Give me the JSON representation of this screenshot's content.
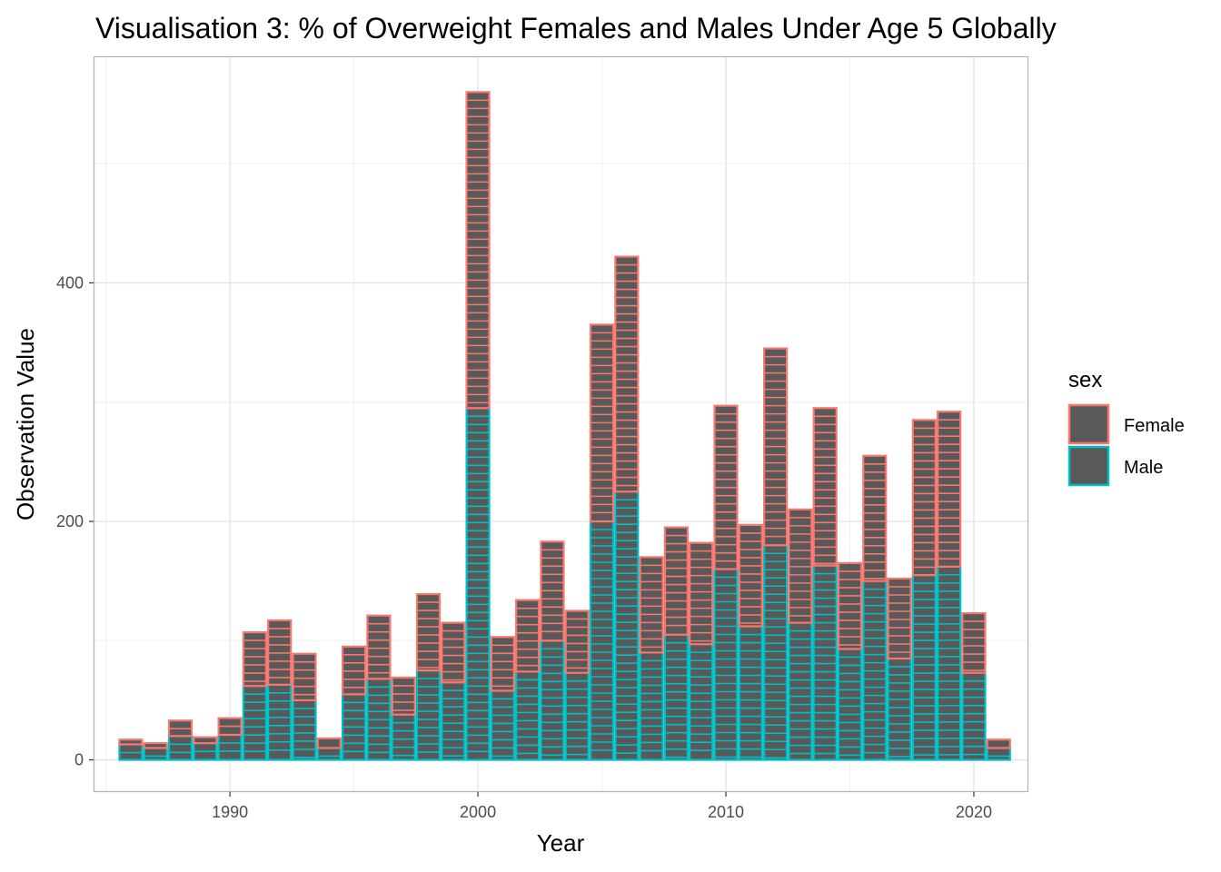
{
  "chart_data": {
    "type": "bar",
    "title": "Visualisation 3: % of Overweight Females and Males Under Age 5 Globally",
    "xlabel": "Year",
    "ylabel": "Observation Value",
    "x": [
      1986,
      1987,
      1988,
      1989,
      1990,
      1991,
      1992,
      1993,
      1994,
      1995,
      1996,
      1997,
      1998,
      1999,
      2000,
      2001,
      2002,
      2003,
      2004,
      2005,
      2006,
      2007,
      2008,
      2009,
      2010,
      2011,
      2012,
      2013,
      2014,
      2015,
      2016,
      2017,
      2018,
      2019,
      2020,
      2021
    ],
    "series": [
      {
        "name": "Male",
        "color": "#00BFC4",
        "values": [
          13,
          10,
          20,
          14,
          21,
          62,
          63,
          50,
          10,
          55,
          68,
          38,
          75,
          65,
          295,
          58,
          74,
          100,
          73,
          200,
          225,
          90,
          105,
          97,
          160,
          112,
          180,
          115,
          163,
          93,
          150,
          85,
          155,
          162,
          73,
          10
        ]
      },
      {
        "name": "Female",
        "color": "#F8766D",
        "values": [
          4,
          4,
          13,
          5,
          14,
          45,
          54,
          39,
          8,
          40,
          53,
          31,
          64,
          50,
          265,
          45,
          60,
          83,
          52,
          165,
          197,
          80,
          90,
          85,
          137,
          85,
          165,
          95,
          132,
          72,
          105,
          67,
          130,
          130,
          50,
          7
        ]
      }
    ],
    "stacked": true,
    "xlim": [
      1984.5,
      2022.2
    ],
    "ylim": [
      -27,
      590
    ],
    "xticks": [
      1990,
      2000,
      2010,
      2020
    ],
    "yticks": [
      0,
      200,
      400
    ],
    "grid": true,
    "legend": {
      "title": "sex",
      "position": "right",
      "entries": [
        "Female",
        "Male"
      ]
    }
  }
}
